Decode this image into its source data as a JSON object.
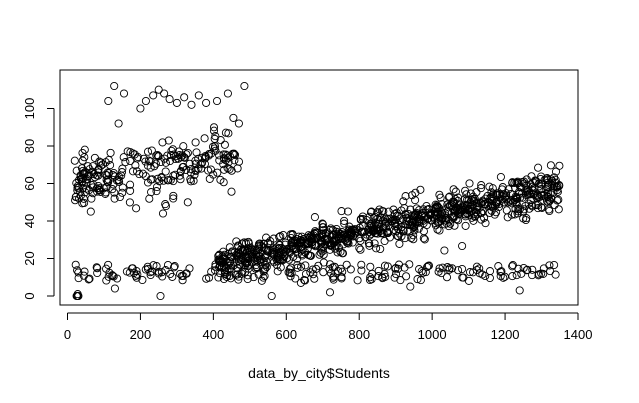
{
  "chart_data": {
    "type": "scatter",
    "title": "",
    "xlabel": "data_by_city$Students",
    "ylabel": "",
    "xlim": [
      0,
      1400
    ],
    "ylim": [
      -5,
      115
    ],
    "x_ticks": [
      0,
      200,
      400,
      600,
      800,
      1000,
      1200,
      1400
    ],
    "y_ticks": [
      0,
      20,
      40,
      60,
      80,
      100
    ],
    "grid": false,
    "legend": "none",
    "colors": {
      "marker_stroke": "#000000",
      "axis": "#000000",
      "background": "#ffffff"
    },
    "marker": "open-circle",
    "clusters": [
      {
        "description": "main upward trend",
        "x_range": [
          410,
          1350
        ],
        "y_at_start": 18,
        "y_at_end": 58,
        "approx_points": 900
      },
      {
        "description": "upper group, low student count",
        "x_range": [
          20,
          480
        ],
        "y_range": [
          45,
          112
        ],
        "approx_points": 260
      },
      {
        "description": "bottom band",
        "x_range": [
          20,
          1350
        ],
        "y_range": [
          0,
          18
        ],
        "approx_points": 220
      }
    ],
    "points": [
      [
        25,
        0
      ],
      [
        27,
        0
      ],
      [
        29,
        0
      ],
      [
        30,
        0
      ],
      [
        28,
        1
      ],
      [
        112,
        104
      ],
      [
        128,
        112
      ],
      [
        140,
        92
      ],
      [
        155,
        108
      ],
      [
        200,
        100
      ],
      [
        215,
        104
      ],
      [
        235,
        107
      ],
      [
        250,
        110
      ],
      [
        265,
        108
      ],
      [
        280,
        105
      ],
      [
        300,
        103
      ],
      [
        320,
        106
      ],
      [
        340,
        102
      ],
      [
        360,
        107
      ],
      [
        380,
        103
      ],
      [
        410,
        104
      ],
      [
        440,
        108
      ],
      [
        485,
        112
      ],
      [
        470,
        92
      ],
      [
        455,
        95
      ],
      [
        270,
        48
      ],
      [
        262,
        44
      ],
      [
        330,
        50
      ],
      [
        290,
        52
      ],
      [
        268,
        49
      ],
      [
        130,
        4
      ],
      [
        255,
        0
      ],
      [
        560,
        0
      ],
      [
        640,
        7
      ],
      [
        720,
        2
      ],
      [
        940,
        5
      ],
      [
        1240,
        3
      ]
    ]
  }
}
